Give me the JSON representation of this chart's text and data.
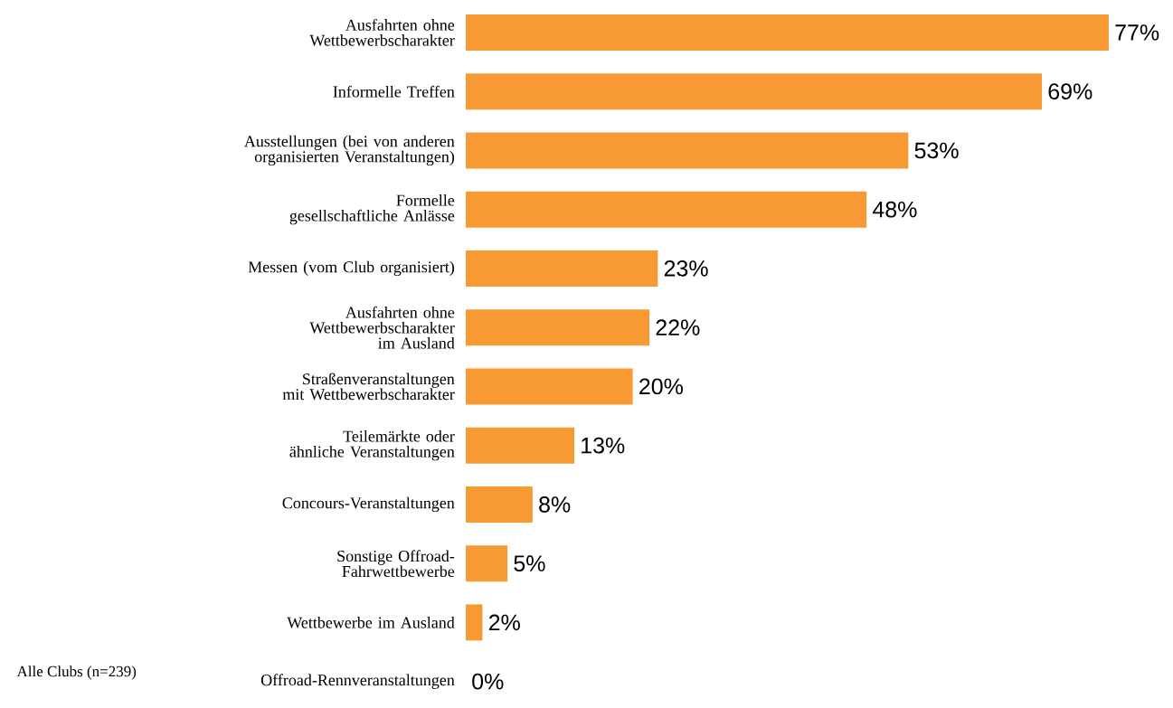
{
  "chart_data": {
    "type": "bar",
    "orientation": "horizontal",
    "categories": [
      "Ausfahrten ohne Wettbewerbscharakter",
      "Informelle Treffen",
      "Ausstellungen (bei von anderen organisierten Veranstaltungen)",
      "Formelle gesellschaftliche Anlässe",
      "Messen (vom Club organisiert)",
      "Ausfahrten ohne Wettbewerbscharakter im Ausland",
      "Straßenveranstaltungen mit Wettbewerbscharakter",
      "Teilemärkte oder ähnliche Veranstaltungen",
      "Concours-Veranstaltungen",
      "Sonstige Offroad-Fahrwettbewerbe",
      "Wettbewerbe im Ausland",
      "Offroad-Rennveranstaltungen"
    ],
    "values": [
      77,
      69,
      53,
      48,
      23,
      22,
      20,
      13,
      8,
      5,
      2,
      0
    ],
    "value_labels": [
      "77%",
      "69%",
      "53%",
      "48%",
      "23%",
      "22%",
      "20%",
      "13%",
      "8%",
      "5%",
      "2%",
      "0%"
    ],
    "color": "#f79a33",
    "annotations": [
      "Alle Clubs (n=239)"
    ]
  }
}
